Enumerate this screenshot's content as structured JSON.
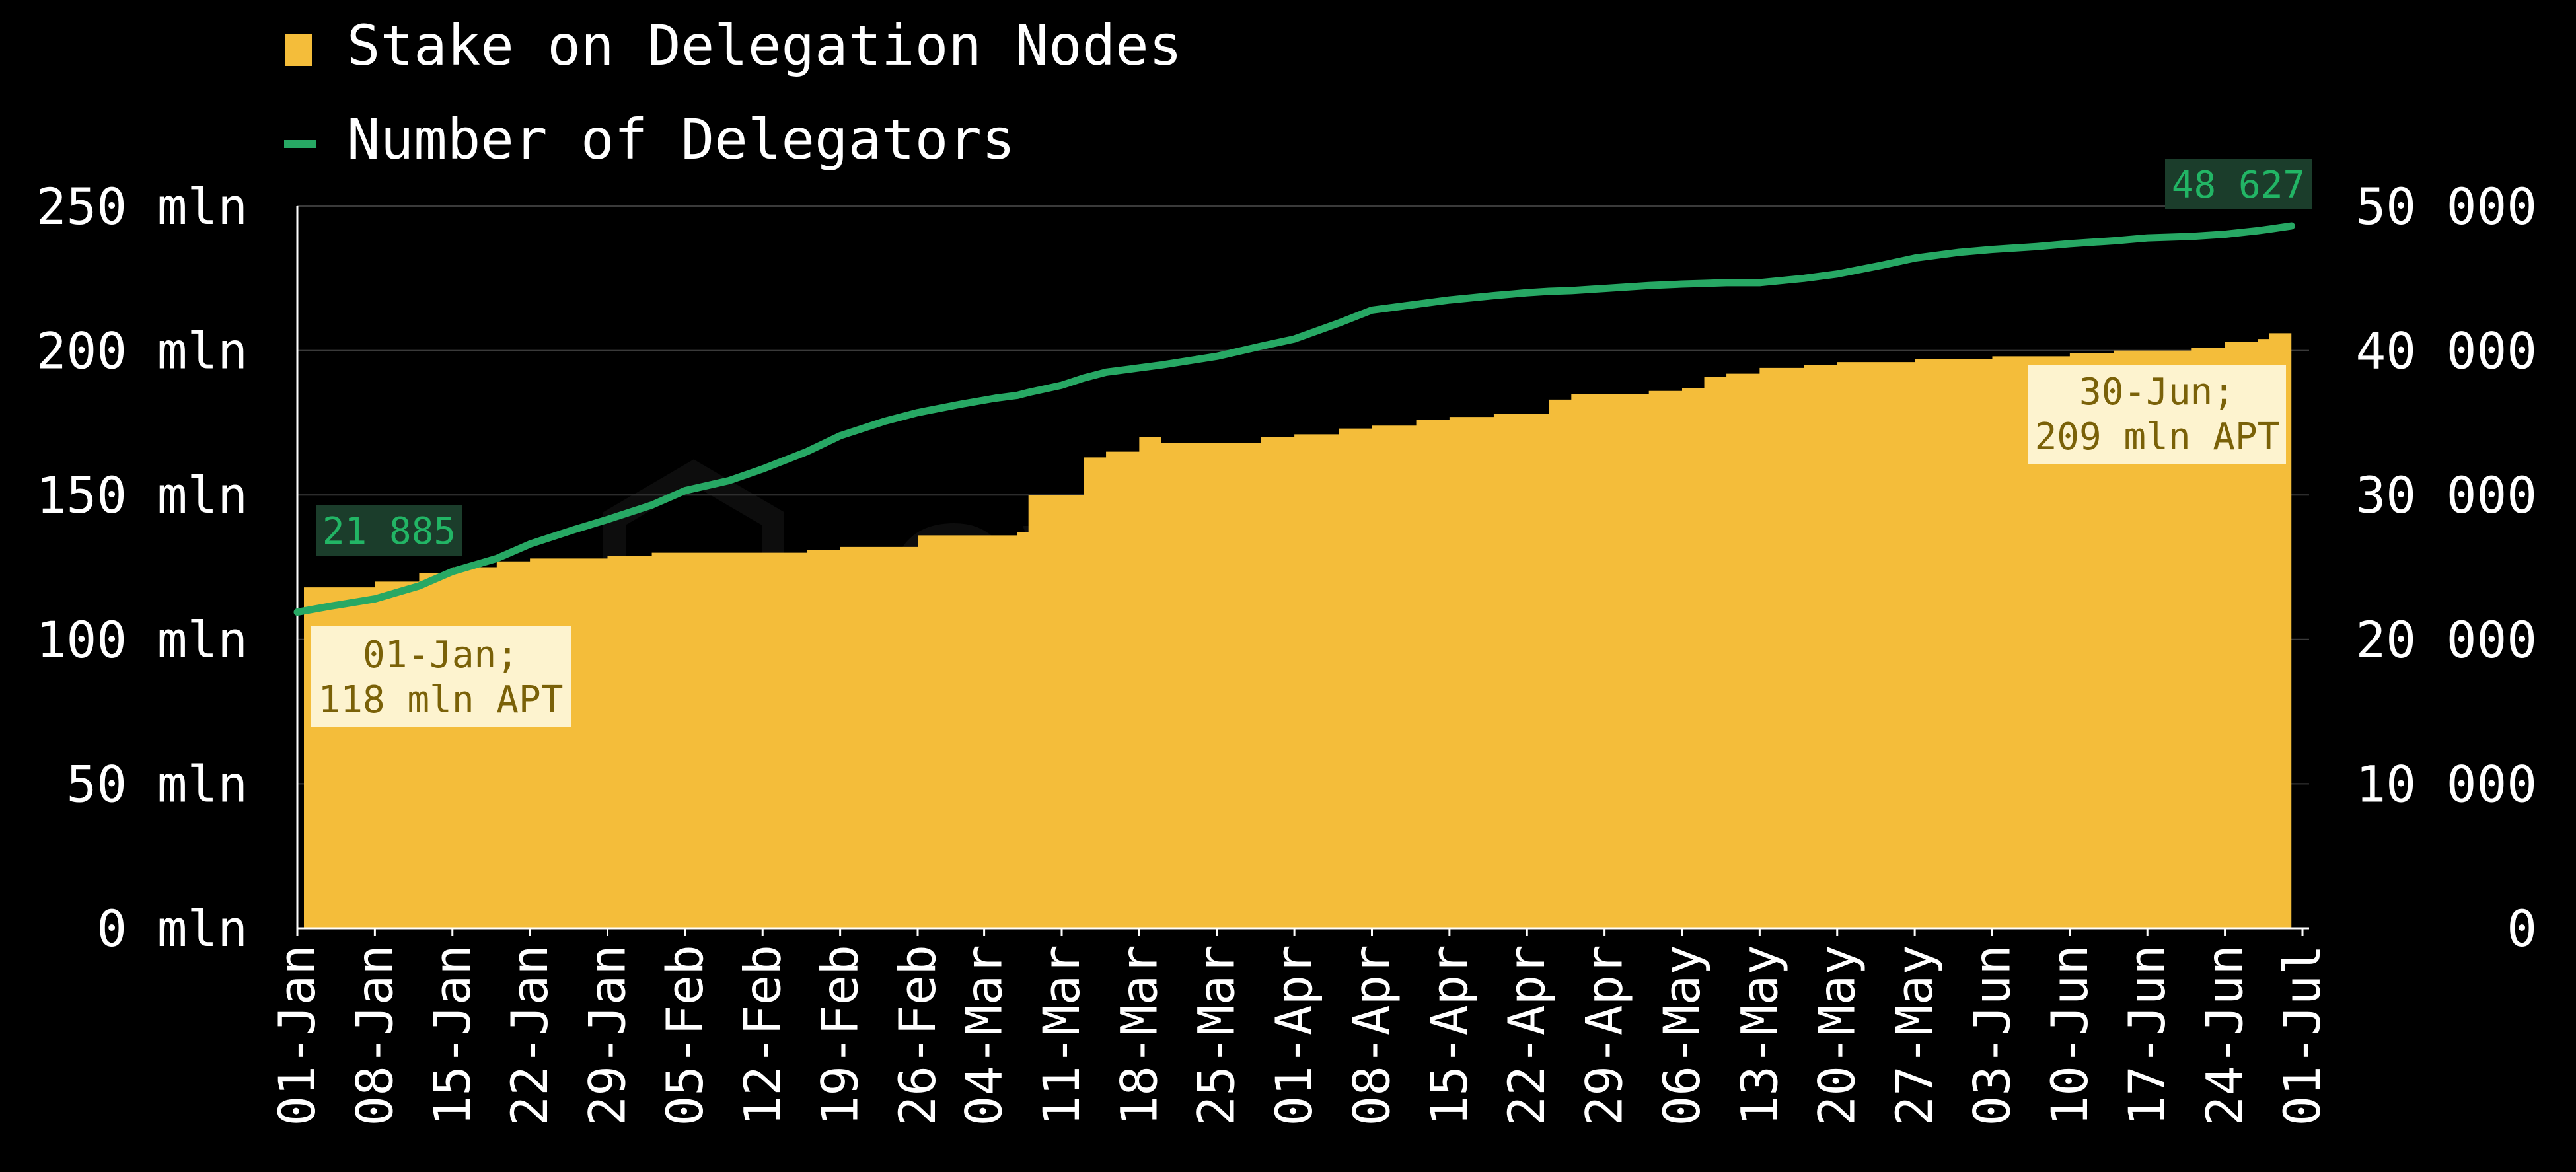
{
  "chart_data": {
    "type": "area",
    "x": [
      "2023-01-01",
      "2023-01-04",
      "2023-01-08",
      "2023-01-12",
      "2023-01-15",
      "2023-01-19",
      "2023-01-22",
      "2023-01-26",
      "2023-01-29",
      "2023-02-02",
      "2023-02-05",
      "2023-02-09",
      "2023-02-12",
      "2023-02-16",
      "2023-02-19",
      "2023-02-23",
      "2023-02-26",
      "2023-03-02",
      "2023-03-05",
      "2023-03-07",
      "2023-03-08",
      "2023-03-11",
      "2023-03-13",
      "2023-03-15",
      "2023-03-17",
      "2023-03-18",
      "2023-03-20",
      "2023-03-25",
      "2023-03-29",
      "2023-04-01",
      "2023-04-05",
      "2023-04-08",
      "2023-04-12",
      "2023-04-15",
      "2023-04-19",
      "2023-04-22",
      "2023-04-24",
      "2023-04-26",
      "2023-04-29",
      "2023-05-03",
      "2023-05-06",
      "2023-05-08",
      "2023-05-10",
      "2023-05-13",
      "2023-05-17",
      "2023-05-20",
      "2023-05-24",
      "2023-05-27",
      "2023-05-31",
      "2023-06-03",
      "2023-06-07",
      "2023-06-10",
      "2023-06-14",
      "2023-06-17",
      "2023-06-21",
      "2023-06-24",
      "2023-06-27",
      "2023-06-28",
      "2023-06-30"
    ],
    "series": [
      {
        "name": "Stake on Delegation Nodes",
        "axis": "left",
        "kind": "area",
        "color": "#f4bd3a",
        "values": [
          118,
          118,
          120,
          123,
          125,
          127,
          128,
          128,
          129,
          130,
          130,
          130,
          130,
          131,
          132,
          132,
          136,
          136,
          136,
          137,
          150,
          150,
          163,
          165,
          165,
          170,
          168,
          168,
          170,
          171,
          173,
          174,
          176,
          177,
          178,
          178,
          183,
          185,
          185,
          186,
          187,
          191,
          192,
          194,
          195,
          196,
          196,
          197,
          197,
          198,
          198,
          199,
          200,
          200,
          201,
          203,
          204,
          206,
          209
        ]
      },
      {
        "name": "Number of Delegators",
        "axis": "right",
        "kind": "line",
        "color": "#27a864",
        "values": [
          21885,
          22300,
          22800,
          23700,
          24700,
          25600,
          26600,
          27600,
          28300,
          29300,
          30300,
          31000,
          31800,
          33000,
          34100,
          35100,
          35700,
          36300,
          36700,
          36900,
          37100,
          37600,
          38100,
          38500,
          38700,
          38800,
          39000,
          39600,
          40300,
          40800,
          41900,
          42800,
          43200,
          43500,
          43800,
          44000,
          44100,
          44150,
          44300,
          44500,
          44600,
          44650,
          44700,
          44700,
          45000,
          45300,
          45900,
          46400,
          46800,
          47000,
          47200,
          47400,
          47600,
          47800,
          47900,
          48050,
          48300,
          48400,
          48627
        ]
      }
    ],
    "y_left": {
      "ylim": [
        0,
        250
      ],
      "ticks": [
        0,
        50,
        100,
        150,
        200,
        250
      ],
      "unit": "mln"
    },
    "y_right": {
      "ylim": [
        0,
        50000
      ],
      "ticks": [
        0,
        10000,
        20000,
        30000,
        40000,
        50000
      ]
    },
    "x_ticks": [
      "01-Jan",
      "08-Jan",
      "15-Jan",
      "22-Jan",
      "29-Jan",
      "05-Feb",
      "12-Feb",
      "19-Feb",
      "26-Feb",
      "04-Mar",
      "11-Mar",
      "18-Mar",
      "25-Mar",
      "01-Apr",
      "08-Apr",
      "15-Apr",
      "22-Apr",
      "29-Apr",
      "06-May",
      "13-May",
      "20-May",
      "27-May",
      "03-Jun",
      "10-Jun",
      "17-Jun",
      "24-Jun",
      "01-Jul"
    ],
    "y_left_tick_labels": [
      "0 mln",
      "50 mln",
      "100 mln",
      "150 mln",
      "200 mln",
      "250 mln"
    ],
    "y_right_tick_labels": [
      "0",
      "10 000",
      "20 000",
      "30 000",
      "40 000",
      "50 000"
    ],
    "grid": true,
    "legend": {
      "position": "top-left",
      "entries": [
        {
          "label": "Stake on Delegation Nodes",
          "marker": "square",
          "color": "#f4bd3a"
        },
        {
          "label": "Number of Delegators",
          "marker": "line",
          "color": "#27a864"
        }
      ]
    },
    "annotations": {
      "start_box": {
        "line1": "01-Jan;",
        "line2": "118 mln APT"
      },
      "end_box": {
        "line1": "30-Jun;",
        "line2": "209 mln APT"
      },
      "start_badge": "21 885",
      "end_badge": "48 627"
    },
    "watermark": "everstake"
  }
}
